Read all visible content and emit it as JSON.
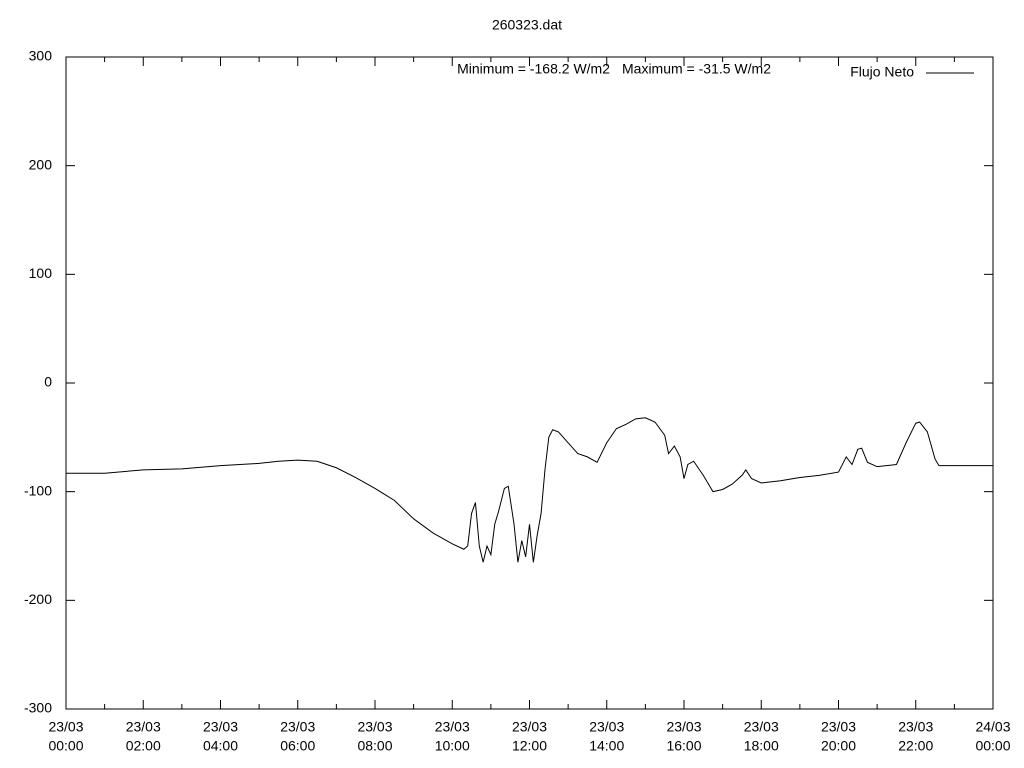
{
  "chart_data": {
    "type": "line",
    "title": "260323.dat",
    "annotations": [
      "Minimum = -168.2 W/m2",
      "Maximum = -31.5 W/m2"
    ],
    "xlim": [
      0,
      24
    ],
    "xticks": [
      {
        "value": 0,
        "label": [
          "23/03",
          "00:00"
        ]
      },
      {
        "value": 2,
        "label": [
          "23/03",
          "02:00"
        ]
      },
      {
        "value": 4,
        "label": [
          "23/03",
          "04:00"
        ]
      },
      {
        "value": 6,
        "label": [
          "23/03",
          "06:00"
        ]
      },
      {
        "value": 8,
        "label": [
          "23/03",
          "08:00"
        ]
      },
      {
        "value": 10,
        "label": [
          "23/03",
          "10:00"
        ]
      },
      {
        "value": 12,
        "label": [
          "23/03",
          "12:00"
        ]
      },
      {
        "value": 14,
        "label": [
          "23/03",
          "14:00"
        ]
      },
      {
        "value": 16,
        "label": [
          "23/03",
          "16:00"
        ]
      },
      {
        "value": 18,
        "label": [
          "23/03",
          "18:00"
        ]
      },
      {
        "value": 20,
        "label": [
          "23/03",
          "20:00"
        ]
      },
      {
        "value": 22,
        "label": [
          "23/03",
          "22:00"
        ]
      },
      {
        "value": 24,
        "label": [
          "24/03",
          "00:00"
        ]
      }
    ],
    "x_minor_ticks": [
      1,
      3,
      5,
      7,
      9,
      11,
      13,
      15,
      17,
      19,
      21,
      23
    ],
    "ylim": [
      -300,
      300
    ],
    "yticks": [
      -300,
      -200,
      -100,
      0,
      100,
      200,
      300
    ],
    "grid": false,
    "legend": "upper right",
    "series": [
      {
        "name": "Flujo Neto",
        "color": "#000000",
        "x": [
          0,
          1,
          2,
          3,
          4,
          5,
          5.5,
          6,
          6.5,
          7,
          7.5,
          8,
          8.5,
          9,
          9.5,
          10,
          10.3,
          10.4,
          10.5,
          10.6,
          10.7,
          10.8,
          10.9,
          11.0,
          11.1,
          11.2,
          11.35,
          11.45,
          11.6,
          11.7,
          11.8,
          11.9,
          12.0,
          12.1,
          12.2,
          12.3,
          12.4,
          12.5,
          12.6,
          12.75,
          13.0,
          13.25,
          13.5,
          13.75,
          14.0,
          14.25,
          14.5,
          14.75,
          15.0,
          15.25,
          15.5,
          15.6,
          15.75,
          15.9,
          16.0,
          16.1,
          16.25,
          16.5,
          16.75,
          17.0,
          17.25,
          17.5,
          17.6,
          17.75,
          18.0,
          18.5,
          19,
          19.5,
          20,
          20.2,
          20.35,
          20.5,
          20.6,
          20.75,
          21.0,
          21.5,
          21.75,
          22.0,
          22.1,
          22.3,
          22.5,
          22.6,
          23,
          24
        ],
        "values": [
          -83,
          -83,
          -80,
          -79,
          -76,
          -74,
          -72,
          -71,
          -72,
          -78,
          -87,
          -97,
          -108,
          -125,
          -138,
          -148,
          -153,
          -150,
          -120,
          -110,
          -150,
          -165,
          -150,
          -158,
          -130,
          -118,
          -97,
          -95,
          -130,
          -165,
          -145,
          -160,
          -130,
          -165,
          -140,
          -120,
          -80,
          -50,
          -43,
          -45,
          -55,
          -65,
          -68,
          -73,
          -55,
          -42,
          -38,
          -33,
          -32,
          -36,
          -48,
          -65,
          -58,
          -68,
          -88,
          -75,
          -72,
          -85,
          -100,
          -98,
          -93,
          -85,
          -80,
          -88,
          -92,
          -90,
          -87,
          -85,
          -82,
          -68,
          -75,
          -61,
          -60,
          -73,
          -77,
          -75,
          -55,
          -37,
          -36,
          -45,
          -70,
          -76,
          -76,
          -76
        ]
      }
    ]
  }
}
